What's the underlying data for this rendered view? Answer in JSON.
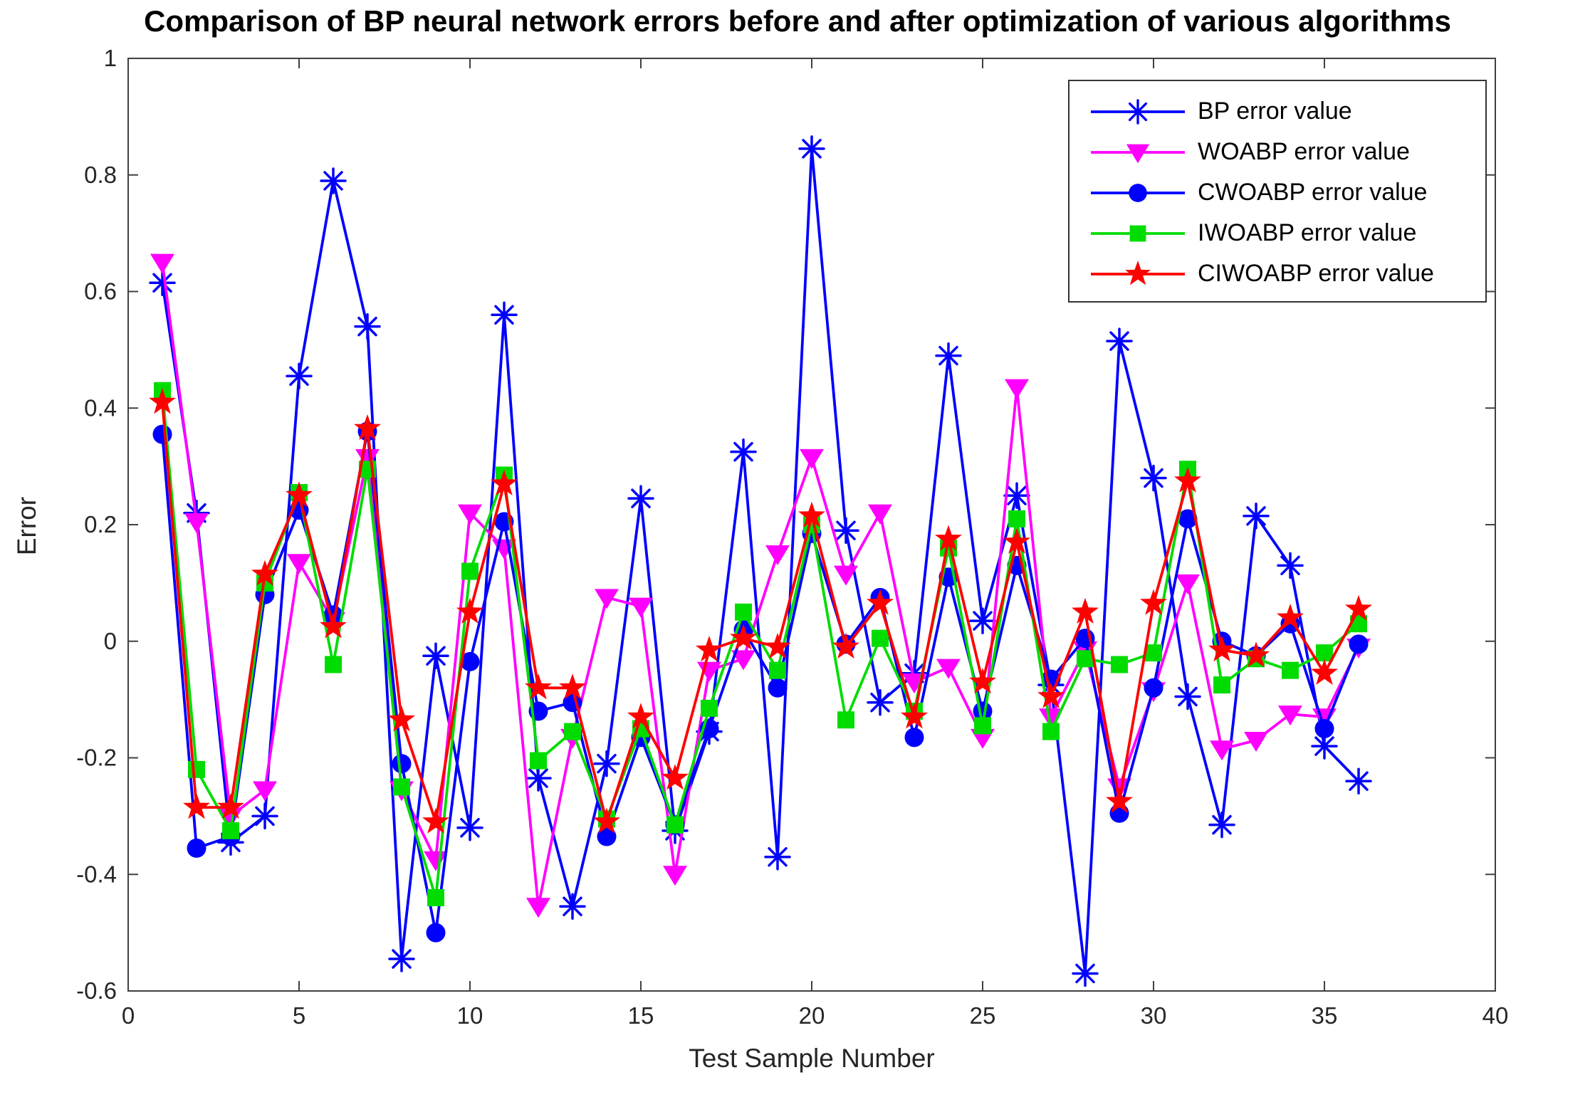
{
  "chart_data": {
    "type": "line",
    "title": "Comparison of BP neural network errors before and after optimization of various algorithms",
    "xlabel": "Test Sample Number",
    "ylabel": "Error",
    "xlim": [
      0,
      40
    ],
    "ylim": [
      -0.6,
      1
    ],
    "xticks": [
      0,
      5,
      10,
      15,
      20,
      25,
      30,
      35,
      40
    ],
    "xtick_labels": [
      "0",
      "5",
      "10",
      "15",
      "20",
      "25",
      "30",
      "35",
      "40"
    ],
    "yticks": [
      -0.6,
      -0.4,
      -0.2,
      0,
      0.2,
      0.4,
      0.6,
      0.8,
      1
    ],
    "ytick_labels": [
      "-0.6",
      "-0.4",
      "-0.2",
      "0",
      "0.2",
      "0.4",
      "0.6",
      "0.8",
      "1"
    ],
    "grid": false,
    "legend_position": "top-right",
    "frame_color": "#404040",
    "tick_label_color": "#262626",
    "x": [
      1,
      2,
      3,
      4,
      5,
      6,
      7,
      8,
      9,
      10,
      11,
      12,
      13,
      14,
      15,
      16,
      17,
      18,
      19,
      20,
      21,
      22,
      23,
      24,
      25,
      26,
      27,
      28,
      29,
      30,
      31,
      32,
      33,
      34,
      35,
      36
    ],
    "series": [
      {
        "name": "BP error value",
        "color": "#0000FF",
        "marker": "asterisk",
        "values": [
          0.615,
          0.22,
          -0.345,
          -0.3,
          0.455,
          0.79,
          0.54,
          -0.545,
          -0.025,
          -0.32,
          0.56,
          -0.235,
          -0.455,
          -0.21,
          0.245,
          -0.325,
          -0.155,
          0.325,
          -0.37,
          0.845,
          0.19,
          -0.105,
          -0.055,
          0.49,
          0.035,
          0.25,
          -0.075,
          -0.57,
          0.515,
          0.28,
          -0.095,
          -0.315,
          0.215,
          0.13,
          -0.18,
          -0.24
        ]
      },
      {
        "name": "WOABP error value",
        "color": "#FF00FF",
        "marker": "triangle-down",
        "values": [
          0.65,
          0.205,
          -0.3,
          -0.255,
          0.135,
          0.035,
          0.315,
          -0.255,
          -0.375,
          0.22,
          0.16,
          -0.455,
          -0.165,
          0.075,
          0.06,
          -0.4,
          -0.05,
          -0.03,
          0.15,
          0.315,
          0.115,
          0.22,
          -0.07,
          -0.045,
          -0.165,
          0.435,
          -0.13,
          -0.015,
          -0.25,
          -0.085,
          0.1,
          -0.185,
          -0.17,
          -0.125,
          -0.13,
          -0.01
        ]
      },
      {
        "name": "CWOABP error value",
        "color": "#0000FF",
        "marker": "circle",
        "values": [
          0.355,
          -0.355,
          -0.335,
          0.08,
          0.225,
          0.045,
          0.36,
          -0.21,
          -0.5,
          -0.035,
          0.205,
          -0.12,
          -0.105,
          -0.335,
          -0.165,
          -0.315,
          -0.15,
          0.02,
          -0.08,
          0.185,
          -0.005,
          0.075,
          -0.165,
          0.11,
          -0.12,
          0.13,
          -0.065,
          0.005,
          -0.295,
          -0.08,
          0.21,
          0.0,
          -0.025,
          0.03,
          -0.15,
          -0.005
        ]
      },
      {
        "name": "IWOABP error value",
        "color": "#00DC00",
        "marker": "square",
        "values": [
          0.43,
          -0.22,
          -0.325,
          0.1,
          0.255,
          -0.04,
          0.295,
          -0.25,
          -0.44,
          0.12,
          0.285,
          -0.205,
          -0.155,
          -0.305,
          -0.15,
          -0.315,
          -0.115,
          0.05,
          -0.05,
          0.2,
          -0.135,
          0.005,
          -0.12,
          0.16,
          -0.145,
          0.21,
          -0.155,
          -0.03,
          -0.04,
          -0.02,
          0.295,
          -0.075,
          -0.03,
          -0.05,
          -0.02,
          0.03
        ]
      },
      {
        "name": "CIWOABP error value",
        "color": "#FF0000",
        "marker": "star",
        "values": [
          0.41,
          -0.285,
          -0.285,
          0.115,
          0.25,
          0.025,
          0.365,
          -0.135,
          -0.31,
          0.05,
          0.27,
          -0.08,
          -0.08,
          -0.31,
          -0.13,
          -0.235,
          -0.015,
          0.005,
          -0.01,
          0.215,
          -0.01,
          0.065,
          -0.13,
          0.175,
          -0.07,
          0.17,
          -0.095,
          0.05,
          -0.275,
          0.065,
          0.275,
          -0.015,
          -0.025,
          0.04,
          -0.055,
          0.055
        ]
      }
    ]
  }
}
